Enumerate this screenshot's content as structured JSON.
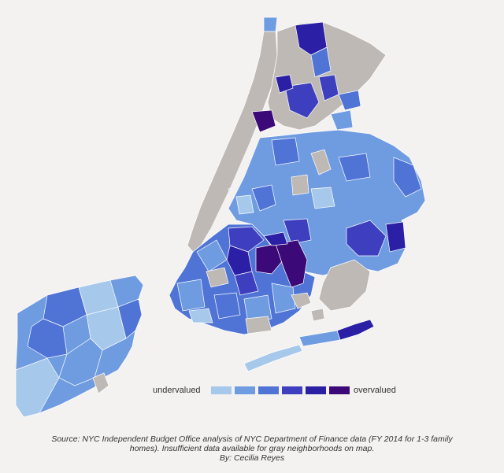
{
  "legend": {
    "low_label": "undervalued",
    "high_label": "overvalued",
    "colors": [
      "#a6c8ea",
      "#6f9ce0",
      "#4f74d6",
      "#3d3fbf",
      "#2b1fa6",
      "#3b0a78"
    ]
  },
  "no_data_color": "#bfb9b5",
  "caption": {
    "line1": "Source: NYC Independent Budget Office analysis of NYC Department of Finance data (FY 2014 for 1-3 family",
    "line2": "homes). Insufficient data available for gray neighborhoods on map.",
    "line3": "By: Cecilia Reyes"
  }
}
